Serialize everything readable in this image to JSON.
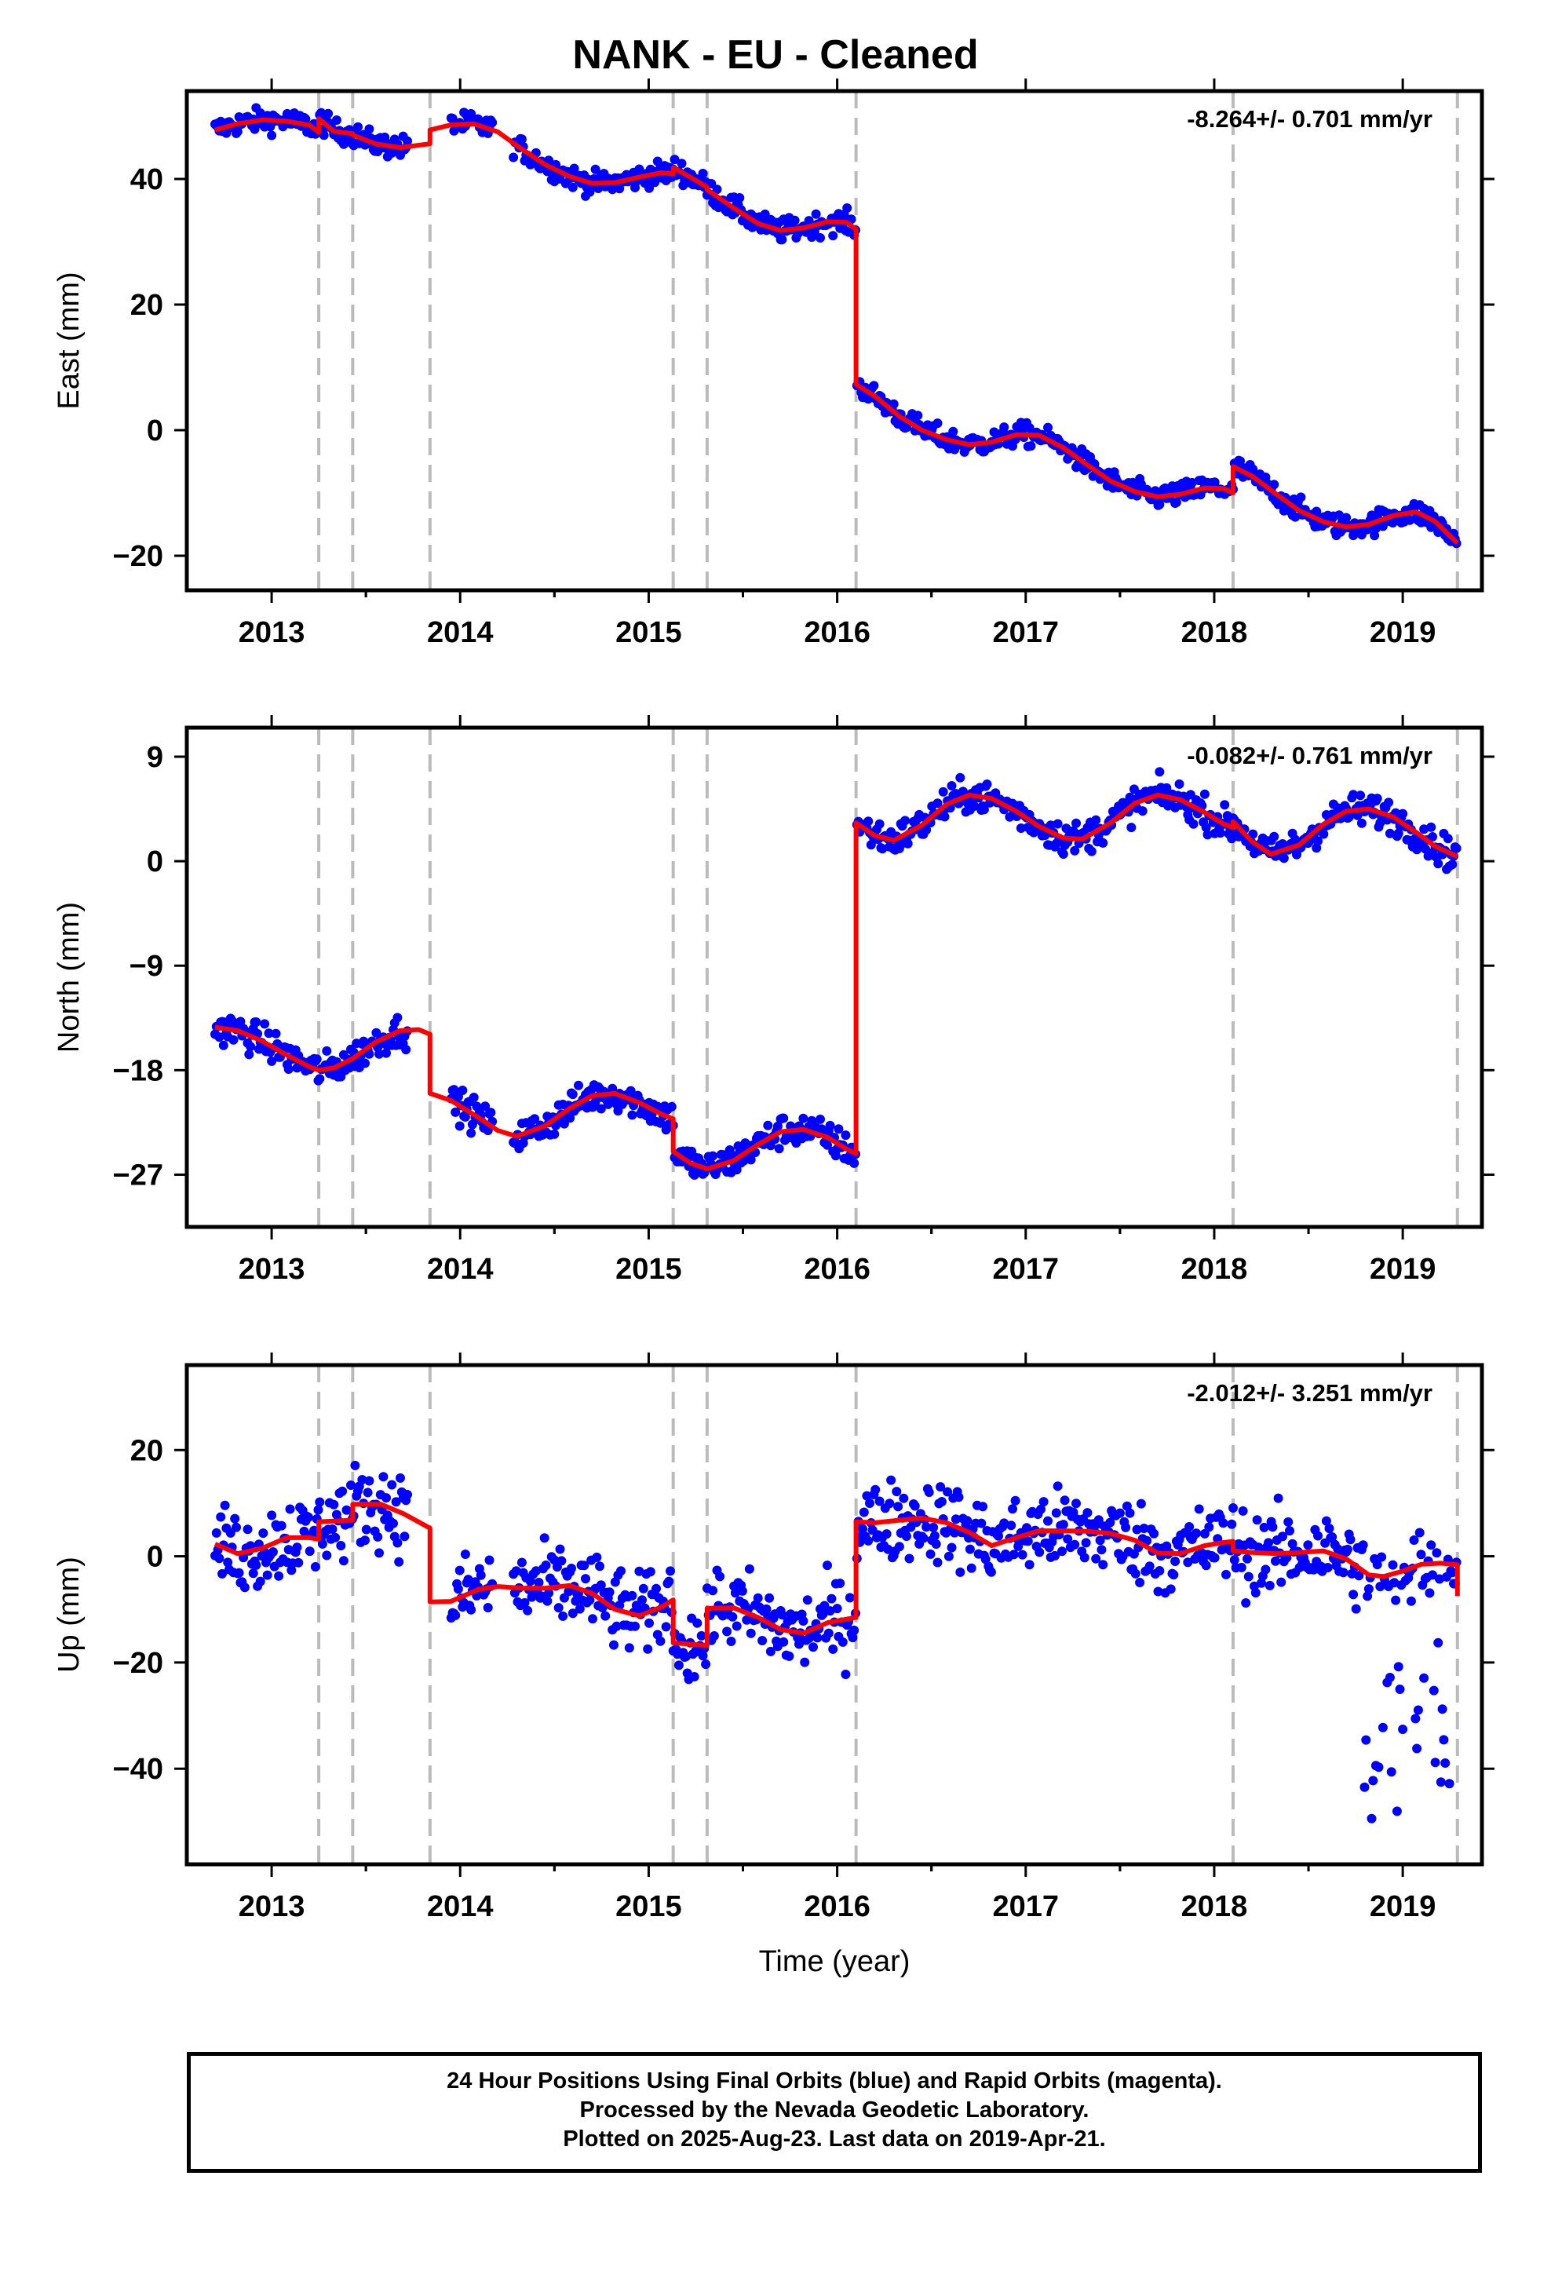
{
  "title": "NANK  - EU - Cleaned",
  "xlabel": "Time (year)",
  "footer": {
    "line1": "24 Hour Positions Using Final Orbits (blue) and Rapid Orbits (magenta).",
    "line2": "Processed by the Nevada Geodetic Laboratory.",
    "line3": "Plotted on 2025-Aug-23. Last data on 2019-Apr-21."
  },
  "colors": {
    "data": "#0000ff",
    "model": "#ff0000",
    "breaks": "#bbbbbb",
    "frame": "#000000"
  },
  "chart_data": [
    {
      "type": "scatter",
      "ylabel": "East (mm)",
      "rate": "-8.264+/- 0.701 mm/yr",
      "xlim": [
        2012.55,
        2019.42
      ],
      "ylim": [
        -25.5,
        54
      ],
      "xticks": [
        2013,
        2014,
        2015,
        2016,
        2017,
        2018,
        2019
      ],
      "yticks": [
        -20,
        0,
        20,
        40
      ],
      "breaks": [
        2013.25,
        2013.43,
        2013.84,
        2015.13,
        2015.31,
        2016.1,
        2018.1,
        2019.29
      ],
      "model": [
        [
          2012.7,
          47.8
        ],
        [
          2012.82,
          48.8
        ],
        [
          2012.95,
          49.4
        ],
        [
          2013.08,
          49.2
        ],
        [
          2013.2,
          48.6
        ],
        [
          2013.25,
          47.4
        ],
        [
          2013.25,
          49.6
        ],
        [
          2013.33,
          47.6
        ],
        [
          2013.43,
          47.2
        ],
        [
          2013.43,
          47.0
        ],
        [
          2013.55,
          45.6
        ],
        [
          2013.68,
          45.0
        ],
        [
          2013.84,
          45.6
        ],
        [
          2013.84,
          47.8
        ],
        [
          2013.95,
          48.6
        ],
        [
          2014.07,
          48.8
        ],
        [
          2014.2,
          47.5
        ],
        [
          2014.33,
          44.7
        ],
        [
          2014.45,
          42.3
        ],
        [
          2014.58,
          40.4
        ],
        [
          2014.7,
          39.3
        ],
        [
          2014.82,
          39.4
        ],
        [
          2014.95,
          40.3
        ],
        [
          2015.07,
          41.0
        ],
        [
          2015.13,
          40.8
        ],
        [
          2015.13,
          41.8
        ],
        [
          2015.22,
          40.3
        ],
        [
          2015.31,
          38.7
        ],
        [
          2015.31,
          38.3
        ],
        [
          2015.45,
          35.4
        ],
        [
          2015.58,
          32.9
        ],
        [
          2015.7,
          31.8
        ],
        [
          2015.82,
          32.2
        ],
        [
          2015.95,
          33.2
        ],
        [
          2016.05,
          33.1
        ],
        [
          2016.1,
          32.0
        ],
        [
          2016.1,
          7.3
        ],
        [
          2016.2,
          5.4
        ],
        [
          2016.33,
          2.2
        ],
        [
          2016.45,
          0.0
        ],
        [
          2016.58,
          -1.5
        ],
        [
          2016.7,
          -2.3
        ],
        [
          2016.82,
          -1.9
        ],
        [
          2016.95,
          -0.7
        ],
        [
          2017.07,
          -0.8
        ],
        [
          2017.2,
          -2.8
        ],
        [
          2017.33,
          -5.6
        ],
        [
          2017.45,
          -8.1
        ],
        [
          2017.58,
          -9.8
        ],
        [
          2017.7,
          -10.6
        ],
        [
          2017.82,
          -10.2
        ],
        [
          2017.95,
          -9.2
        ],
        [
          2018.05,
          -9.3
        ],
        [
          2018.1,
          -10.0
        ],
        [
          2018.1,
          -5.8
        ],
        [
          2018.2,
          -7.3
        ],
        [
          2018.33,
          -10.2
        ],
        [
          2018.45,
          -12.8
        ],
        [
          2018.58,
          -14.6
        ],
        [
          2018.7,
          -15.4
        ],
        [
          2018.82,
          -15.0
        ],
        [
          2018.95,
          -13.6
        ],
        [
          2019.07,
          -13.0
        ],
        [
          2019.17,
          -14.5
        ],
        [
          2019.29,
          -18.0
        ]
      ]
    },
    {
      "type": "scatter",
      "ylabel": "North (mm)",
      "rate": "-0.082+/- 0.761 mm/yr",
      "xlim": [
        2012.55,
        2019.42
      ],
      "ylim": [
        -31.5,
        11.5
      ],
      "xticks": [
        2013,
        2014,
        2015,
        2016,
        2017,
        2018,
        2019
      ],
      "yticks": [
        -27,
        -18,
        -9,
        0,
        9
      ],
      "breaks": [
        2013.25,
        2013.43,
        2013.84,
        2015.13,
        2015.31,
        2016.1,
        2018.1,
        2019.29
      ],
      "model": [
        [
          2012.7,
          -14.3
        ],
        [
          2012.82,
          -14.6
        ],
        [
          2012.95,
          -15.5
        ],
        [
          2013.08,
          -16.7
        ],
        [
          2013.2,
          -17.7
        ],
        [
          2013.25,
          -18.0
        ],
        [
          2013.33,
          -17.8
        ],
        [
          2013.43,
          -17.0
        ],
        [
          2013.55,
          -15.6
        ],
        [
          2013.68,
          -14.6
        ],
        [
          2013.78,
          -14.5
        ],
        [
          2013.84,
          -14.9
        ],
        [
          2013.84,
          -20.0
        ],
        [
          2013.95,
          -20.6
        ],
        [
          2014.07,
          -21.8
        ],
        [
          2014.2,
          -23.2
        ],
        [
          2014.3,
          -23.7
        ],
        [
          2014.45,
          -22.8
        ],
        [
          2014.58,
          -21.3
        ],
        [
          2014.7,
          -20.2
        ],
        [
          2014.82,
          -20.0
        ],
        [
          2014.95,
          -20.8
        ],
        [
          2015.07,
          -21.8
        ],
        [
          2015.13,
          -22.2
        ],
        [
          2015.13,
          -25.0
        ],
        [
          2015.22,
          -26.0
        ],
        [
          2015.31,
          -26.5
        ],
        [
          2015.45,
          -25.8
        ],
        [
          2015.58,
          -24.4
        ],
        [
          2015.7,
          -23.3
        ],
        [
          2015.82,
          -23.1
        ],
        [
          2015.95,
          -23.8
        ],
        [
          2016.05,
          -24.8
        ],
        [
          2016.1,
          -25.2
        ],
        [
          2016.1,
          3.3
        ],
        [
          2016.2,
          2.2
        ],
        [
          2016.3,
          1.8
        ],
        [
          2016.45,
          3.1
        ],
        [
          2016.58,
          4.9
        ],
        [
          2016.7,
          5.7
        ],
        [
          2016.82,
          5.4
        ],
        [
          2016.95,
          4.3
        ],
        [
          2017.07,
          3.0
        ],
        [
          2017.2,
          2.0
        ],
        [
          2017.3,
          1.9
        ],
        [
          2017.45,
          3.3
        ],
        [
          2017.58,
          5.0
        ],
        [
          2017.7,
          5.7
        ],
        [
          2017.82,
          5.3
        ],
        [
          2017.95,
          4.2
        ],
        [
          2018.05,
          3.2
        ],
        [
          2018.1,
          2.9
        ],
        [
          2018.1,
          3.4
        ],
        [
          2018.2,
          1.7
        ],
        [
          2018.3,
          0.6
        ],
        [
          2018.45,
          1.4
        ],
        [
          2018.58,
          3.2
        ],
        [
          2018.7,
          4.3
        ],
        [
          2018.82,
          4.5
        ],
        [
          2018.95,
          3.8
        ],
        [
          2019.07,
          2.5
        ],
        [
          2019.17,
          1.3
        ],
        [
          2019.29,
          0.4
        ]
      ]
    },
    {
      "type": "scatter",
      "ylabel": "Up (mm)",
      "rate": "-2.012+/- 3.251 mm/yr",
      "xlim": [
        2012.55,
        2019.42
      ],
      "ylim": [
        -58,
        36
      ],
      "xticks": [
        2013,
        2014,
        2015,
        2016,
        2017,
        2018,
        2019
      ],
      "yticks": [
        -40,
        -20,
        0,
        20
      ],
      "breaks": [
        2013.25,
        2013.43,
        2013.84,
        2015.13,
        2015.31,
        2016.1,
        2018.1,
        2019.29
      ],
      "model": [
        [
          2012.7,
          2.3
        ],
        [
          2012.82,
          0.5
        ],
        [
          2012.95,
          1.5
        ],
        [
          2013.08,
          3.5
        ],
        [
          2013.2,
          3.5
        ],
        [
          2013.25,
          3.2
        ],
        [
          2013.25,
          6.5
        ],
        [
          2013.43,
          6.8
        ],
        [
          2013.43,
          9.8
        ],
        [
          2013.58,
          9.8
        ],
        [
          2013.7,
          8.0
        ],
        [
          2013.84,
          5.3
        ],
        [
          2013.84,
          -8.6
        ],
        [
          2013.95,
          -8.5
        ],
        [
          2014.1,
          -6.2
        ],
        [
          2014.2,
          -5.7
        ],
        [
          2014.33,
          -6.0
        ],
        [
          2014.45,
          -6.0
        ],
        [
          2014.58,
          -5.5
        ],
        [
          2014.7,
          -7.0
        ],
        [
          2014.82,
          -10.0
        ],
        [
          2014.95,
          -11.2
        ],
        [
          2015.07,
          -9.5
        ],
        [
          2015.13,
          -8.2
        ],
        [
          2015.13,
          -16.3
        ],
        [
          2015.31,
          -16.8
        ],
        [
          2015.31,
          -9.8
        ],
        [
          2015.45,
          -9.7
        ],
        [
          2015.58,
          -11.5
        ],
        [
          2015.7,
          -13.8
        ],
        [
          2015.82,
          -14.5
        ],
        [
          2015.95,
          -12.5
        ],
        [
          2016.1,
          -11.5
        ],
        [
          2016.1,
          6.5
        ],
        [
          2016.2,
          6.3
        ],
        [
          2016.33,
          6.8
        ],
        [
          2016.45,
          7.2
        ],
        [
          2016.58,
          6.3
        ],
        [
          2016.7,
          4.5
        ],
        [
          2016.82,
          2.0
        ],
        [
          2016.95,
          3.5
        ],
        [
          2017.07,
          4.8
        ],
        [
          2017.2,
          4.8
        ],
        [
          2017.33,
          4.7
        ],
        [
          2017.45,
          4.3
        ],
        [
          2017.58,
          3.0
        ],
        [
          2017.7,
          0.6
        ],
        [
          2017.82,
          0.5
        ],
        [
          2017.95,
          2.0
        ],
        [
          2018.05,
          2.6
        ],
        [
          2018.1,
          2.8
        ],
        [
          2018.1,
          1.0
        ],
        [
          2018.2,
          0.7
        ],
        [
          2018.33,
          0.5
        ],
        [
          2018.45,
          0.7
        ],
        [
          2018.58,
          1.0
        ],
        [
          2018.7,
          -0.5
        ],
        [
          2018.82,
          -3.5
        ],
        [
          2018.9,
          -3.8
        ],
        [
          2019.0,
          -2.8
        ],
        [
          2019.1,
          -1.5
        ],
        [
          2019.2,
          -1.3
        ],
        [
          2019.29,
          -1.6
        ],
        [
          2019.29,
          -7.5
        ]
      ]
    }
  ]
}
